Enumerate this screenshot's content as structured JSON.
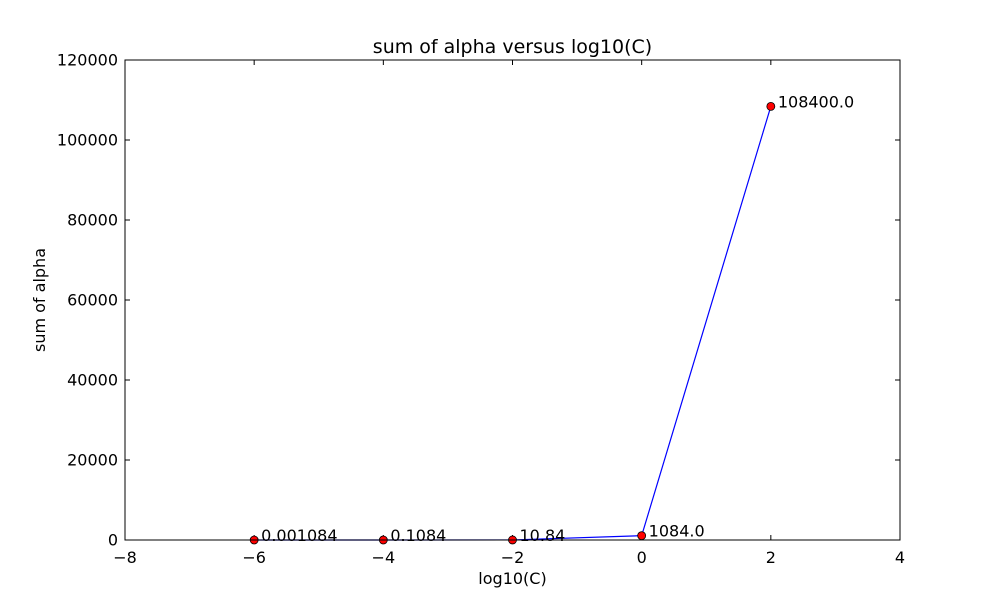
{
  "chart_data": {
    "type": "line",
    "title": "sum of alpha versus log10(C)",
    "xlabel": "log10(C)",
    "ylabel": "sum of alpha",
    "xlim": [
      -8,
      4
    ],
    "ylim": [
      0,
      120000
    ],
    "x_ticks": [
      -8,
      -6,
      -4,
      -2,
      0,
      2,
      4
    ],
    "x_tick_labels": [
      "−8",
      "−6",
      "−4",
      "−2",
      "0",
      "2",
      "4"
    ],
    "y_ticks": [
      0,
      20000,
      40000,
      60000,
      80000,
      100000,
      120000
    ],
    "y_tick_labels": [
      "0",
      "20000",
      "40000",
      "60000",
      "80000",
      "100000",
      "120000"
    ],
    "grid": false,
    "series": [
      {
        "x": [
          -6,
          -4,
          -2,
          0,
          2
        ],
        "y": [
          0.001084,
          0.1084,
          10.84,
          1084.0,
          108400.0
        ],
        "point_labels": [
          "0.001084",
          "0.1084",
          "10.84",
          "1084.0",
          "108400.0"
        ],
        "line_color": "#0000ff",
        "marker_color": "#ff0000"
      }
    ]
  }
}
